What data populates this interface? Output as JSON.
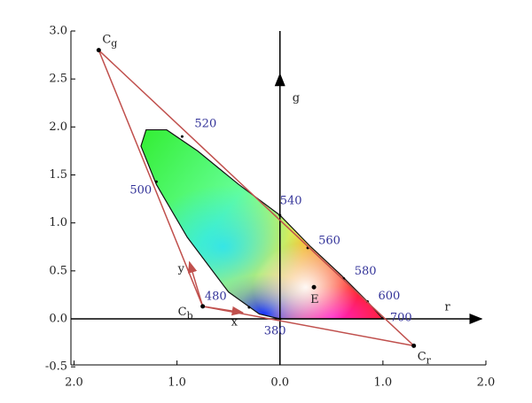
{
  "chart_data": {
    "type": "scatter",
    "xlim": [
      -2.03,
      2.0
    ],
    "ylim": [
      -0.48,
      3.0
    ],
    "xticks": [
      {
        "value": -2,
        "label": "2.0"
      },
      {
        "value": -1,
        "label": "1.0"
      },
      {
        "value": 0,
        "label": "0.0"
      },
      {
        "value": 1,
        "label": "1.0"
      },
      {
        "value": 2,
        "label": "2.0"
      }
    ],
    "yticks": [
      {
        "value": 3,
        "label": "3.0"
      },
      {
        "value": 2.5,
        "label": "2.5"
      },
      {
        "value": 2,
        "label": "2.0"
      },
      {
        "value": 1.5,
        "label": "1.5"
      },
      {
        "value": 1,
        "label": "1.0"
      },
      {
        "value": 0.5,
        "label": "0.5"
      },
      {
        "value": 0,
        "label": "0.0"
      },
      -0.5
    ],
    "x_axis_label": "r",
    "y_axis_label": "g",
    "locus": {
      "x": [
        0,
        -0.2,
        -0.5,
        -0.9,
        -1.2,
        -1.35,
        -1.3,
        -1.1,
        -0.8,
        -0.4,
        0,
        0.3,
        0.6,
        0.85,
        1.0
      ],
      "y": [
        0,
        0.05,
        0.28,
        0.85,
        1.4,
        1.8,
        1.97,
        1.97,
        1.75,
        1.4,
        1.08,
        0.75,
        0.45,
        0.18,
        0
      ]
    },
    "wavelengths": {
      "labels": [
        "380",
        "480",
        "500",
        "520",
        "540",
        "560",
        "580",
        "600",
        "700"
      ],
      "x": [
        0,
        -0.3,
        -1.2,
        -0.95,
        0,
        0.27,
        0.62,
        0.85,
        1.0
      ],
      "y": [
        0,
        0.12,
        1.43,
        1.9,
        1.08,
        0.74,
        0.42,
        0.18,
        0.01
      ]
    },
    "points": {
      "labels": [
        "Cg",
        "Cb",
        "Cr",
        "E"
      ],
      "x": [
        -1.76,
        -0.75,
        1.3,
        0.33
      ],
      "y": [
        2.8,
        0.13,
        -0.28,
        0.33
      ]
    },
    "basis_labels": [
      "x",
      "y"
    ],
    "triangle_color": "#c0504d"
  }
}
